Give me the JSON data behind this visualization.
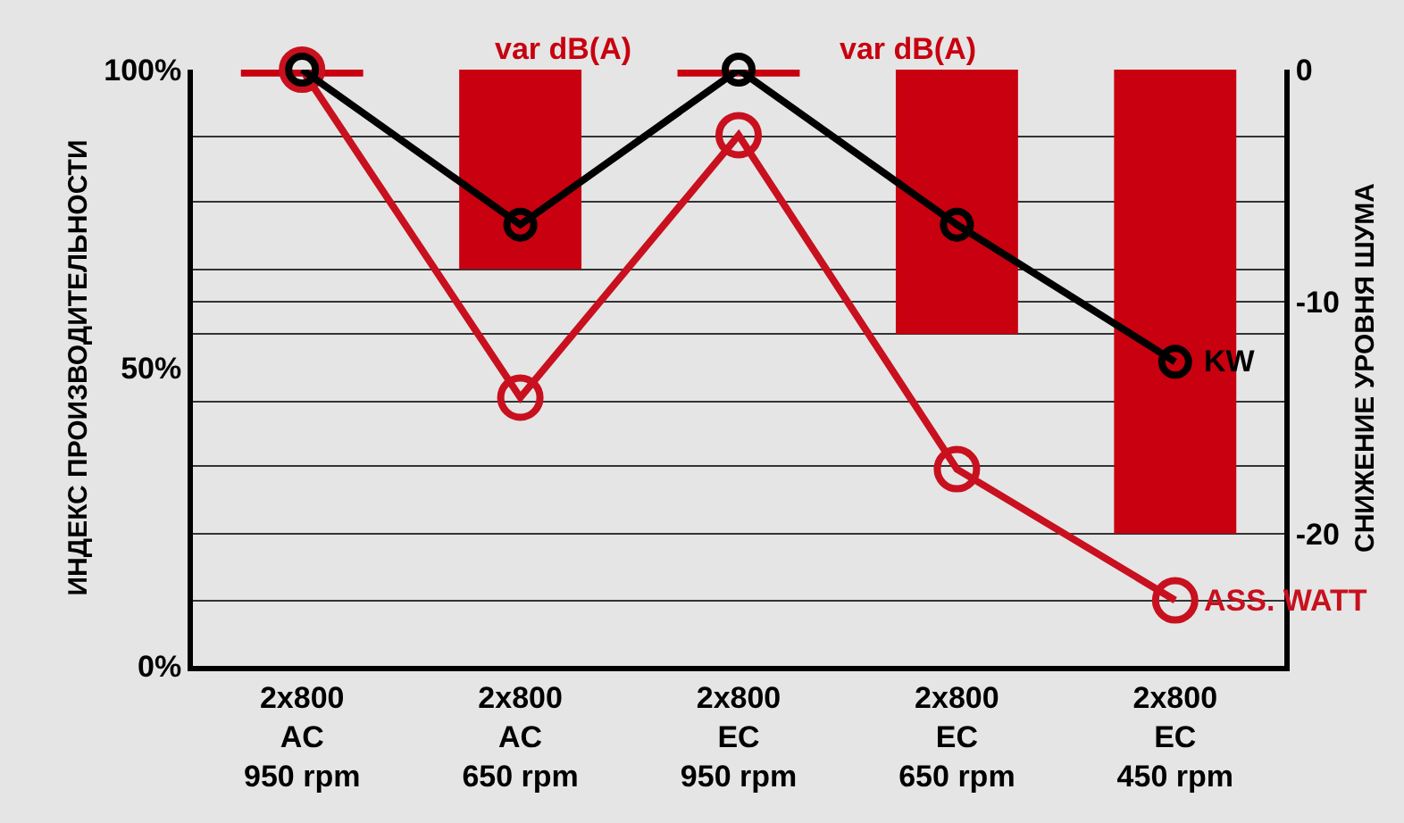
{
  "chart_data": {
    "type": "line",
    "categories": [
      "2x800\nAC\n950 rpm",
      "2x800\nAC\n650 rpm",
      "2x800\nEC\n950 rpm",
      "2x800\nEC\n650 rpm",
      "2x800\nEC\n450 rpm"
    ],
    "ylabel": "ИНДЕКС ПРОИЗВОДИТЕЛЬНОСТИ",
    "y2label": "СНИЖЕНИЕ УРОВНЯ ШУМА",
    "series": [
      {
        "type": "bar",
        "axis": "y2",
        "color": "#c8000f",
        "values": [
          -0.3,
          -8.6,
          -0.3,
          -11.4,
          -20
        ]
      },
      {
        "name": "ASS. WATT",
        "color": "#c8101e",
        "values": [
          100,
          45,
          89,
          33,
          11
        ]
      },
      {
        "name": "KW",
        "color": "#000000",
        "values": [
          100,
          74,
          100,
          74,
          51
        ]
      }
    ],
    "ylim": [
      0,
      100
    ],
    "yticks": [
      {
        "value": 0,
        "label": "0%"
      },
      {
        "value": 50,
        "label": "50%"
      },
      {
        "value": 100,
        "label": "100%"
      }
    ],
    "y2lim": [
      -25.7,
      0
    ],
    "y2ticks": [
      0,
      {
        "value": -2.9,
        "label": null
      },
      {
        "value": -5.7,
        "label": null
      },
      {
        "value": -8.6,
        "label": null
      },
      -10,
      {
        "value": -11.4,
        "label": null
      },
      {
        "value": -14.3,
        "label": null
      },
      {
        "value": -17.1,
        "label": null
      },
      -20,
      {
        "value": -22.9,
        "label": null
      }
    ],
    "annotations": [
      "var dB(A)",
      "var dB(A)"
    ],
    "grid": "y2",
    "legend": false,
    "marker": "circle",
    "line_style": "solid"
  }
}
